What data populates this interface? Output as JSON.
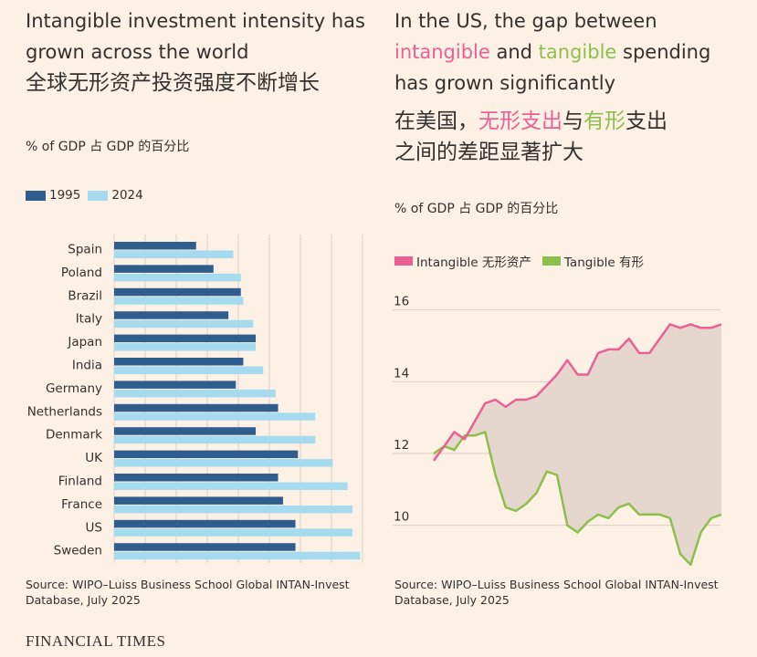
{
  "left": {
    "title_en": "Intangible investment intensity has grown across the world",
    "title_cn": "全球无形资产投资强度不断增长",
    "subtitle": "% of GDP  占 GDP 的百分比",
    "source": "Source: WIPO–Luiss Business School Global INTAN-Invest Database, July 2025"
  },
  "right": {
    "title_en_part1": "In the US, the gap between",
    "title_en_int": "intangible",
    "title_en_and": " and ",
    "title_en_tan": "tangible",
    "title_en_part2": " spending",
    "title_en_line3": "has grown significantly",
    "title_cn_part1": "在美国，",
    "title_cn_int": "无形支出",
    "title_cn_and": "与",
    "title_cn_tan": "有形",
    "title_cn_part2": "支出",
    "title_cn_line2": "之间的差距显著扩大",
    "subtitle": "% of GDP  占 GDP 的百分比",
    "source": "Source: WIPO–Luiss Business School Global INTAN-Invest Database, July 2025"
  },
  "footer": {
    "brand": "FINANCIAL TIMES"
  },
  "colors": {
    "bg": "#fdf1e6",
    "bar1995": "#2f5e8e",
    "bar2024": "#a6dbef",
    "intangible": "#ec5f92",
    "tangible": "#8dbf4c",
    "gap_fill": "#e6d7ce",
    "grid": "#d9cec5"
  },
  "chart_data": [
    {
      "type": "bar",
      "orientation": "horizontal",
      "categories": [
        "Spain",
        "Poland",
        "Brazil",
        "Italy",
        "Japan",
        "India",
        "Germany",
        "Netherlands",
        "Denmark",
        "UK",
        "Finland",
        "France",
        "US",
        "Sweden"
      ],
      "series": [
        {
          "name": "1995",
          "values": [
            3.3,
            4.0,
            5.1,
            4.6,
            5.7,
            5.2,
            4.9,
            6.6,
            5.7,
            7.4,
            6.6,
            6.8,
            7.3,
            7.3
          ]
        },
        {
          "name": "2024",
          "values": [
            4.8,
            5.1,
            5.2,
            5.6,
            5.7,
            6.0,
            6.5,
            8.1,
            8.1,
            8.8,
            9.4,
            9.6,
            9.6,
            9.9
          ]
        }
      ],
      "xlim": [
        0,
        10
      ],
      "grid": true,
      "legend": "top-left"
    },
    {
      "type": "line",
      "series": [
        {
          "name": "Intangible 无形资产",
          "values": [
            11.8,
            12.2,
            12.6,
            12.4,
            12.9,
            13.4,
            13.5,
            13.3,
            13.5,
            13.5,
            13.6,
            13.9,
            14.2,
            14.6,
            14.2,
            14.2,
            14.8,
            14.9,
            14.9,
            15.2,
            14.8,
            14.8,
            15.2,
            15.6,
            15.5,
            15.6,
            15.5,
            15.5,
            15.6
          ]
        },
        {
          "name": "Tangible 有形",
          "values": [
            12.0,
            12.2,
            12.1,
            12.5,
            12.5,
            12.6,
            11.4,
            10.5,
            10.4,
            10.6,
            10.9,
            11.5,
            11.4,
            10.0,
            9.8,
            10.1,
            10.3,
            10.2,
            10.5,
            10.6,
            10.3,
            10.3,
            10.3,
            10.2,
            9.2,
            8.9,
            9.8,
            10.2,
            10.3
          ]
        }
      ],
      "y_ticks": [
        10,
        12,
        14,
        16
      ],
      "ylim": [
        9,
        16.5
      ],
      "grid": true,
      "legend": "top-left",
      "gap_shaded": true
    }
  ]
}
